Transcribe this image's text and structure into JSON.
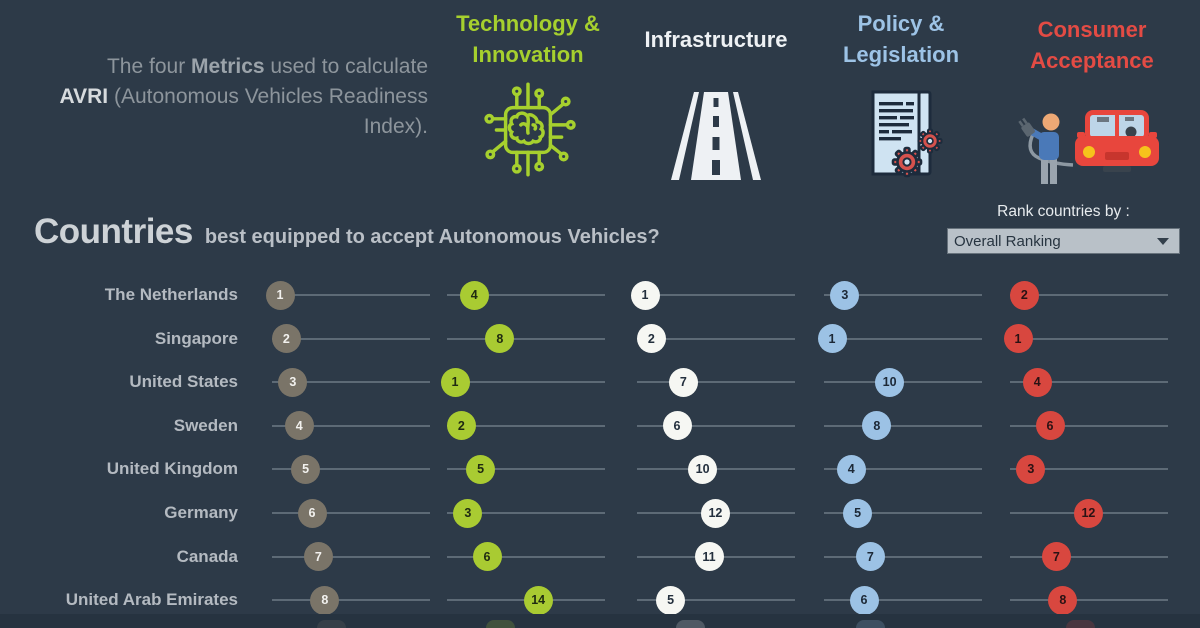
{
  "header": {
    "intro": {
      "line1_pre": "The four ",
      "line1_bold": "Metrics",
      "line1_post": " used to calculate",
      "line2_bold": "AVRI",
      "line2_post": " (Autonomous Vehicles Readiness",
      "line3": "Index)."
    },
    "metrics": [
      {
        "label_line1": "Technology &",
        "label_line2": "Innovation",
        "color": "#a6d02e",
        "icon": "chip-brain-icon"
      },
      {
        "label_line1": "Infrastructure",
        "label_line2": "",
        "color": "#eef1f4",
        "icon": "road-icon"
      },
      {
        "label_line1": "Policy &",
        "label_line2": "Legislation",
        "color": "#9dc3e6",
        "icon": "document-gears-icon"
      },
      {
        "label_line1": "Consumer",
        "label_line2": "Acceptance",
        "color": "#e34b44",
        "icon": "person-charging-car-icon"
      }
    ]
  },
  "section": {
    "title": "Countries",
    "subtitle": "best equipped to accept Autonomous Vehicles?"
  },
  "controls": {
    "rank_by_label": "Rank countries by :",
    "dropdown_value": "Overall Ranking"
  },
  "chart_data": {
    "type": "table",
    "subtype": "ranked-dot-plot",
    "columns": [
      "Overall Ranking",
      "Technology & Innovation",
      "Infrastructure",
      "Policy & Legislation",
      "Consumer Acceptance"
    ],
    "column_colors": [
      "#7a7468",
      "#a9cb32",
      "#f6f7f3",
      "#9cc2e5",
      "#d8473f"
    ],
    "dot_text_colors": [
      "#f2f1ee",
      "#1f2a12",
      "#232f3d",
      "#1c2836",
      "#2a1214"
    ],
    "rank_axis": {
      "min": 1,
      "max": 25
    },
    "rows": [
      {
        "country": "The Netherlands",
        "ranks": [
          1,
          4,
          1,
          3,
          2
        ]
      },
      {
        "country": "Singapore",
        "ranks": [
          2,
          8,
          2,
          1,
          1
        ]
      },
      {
        "country": "United States",
        "ranks": [
          3,
          1,
          7,
          10,
          4
        ]
      },
      {
        "country": "Sweden",
        "ranks": [
          4,
          2,
          6,
          8,
          6
        ]
      },
      {
        "country": "United Kingdom",
        "ranks": [
          5,
          5,
          10,
          4,
          3
        ]
      },
      {
        "country": "Germany",
        "ranks": [
          6,
          3,
          12,
          5,
          12
        ]
      },
      {
        "country": "Canada",
        "ranks": [
          7,
          6,
          11,
          7,
          7
        ]
      },
      {
        "country": "United Arab Emirates",
        "ranks": [
          8,
          14,
          5,
          6,
          8
        ]
      }
    ],
    "partial_next_row_visible": true
  }
}
